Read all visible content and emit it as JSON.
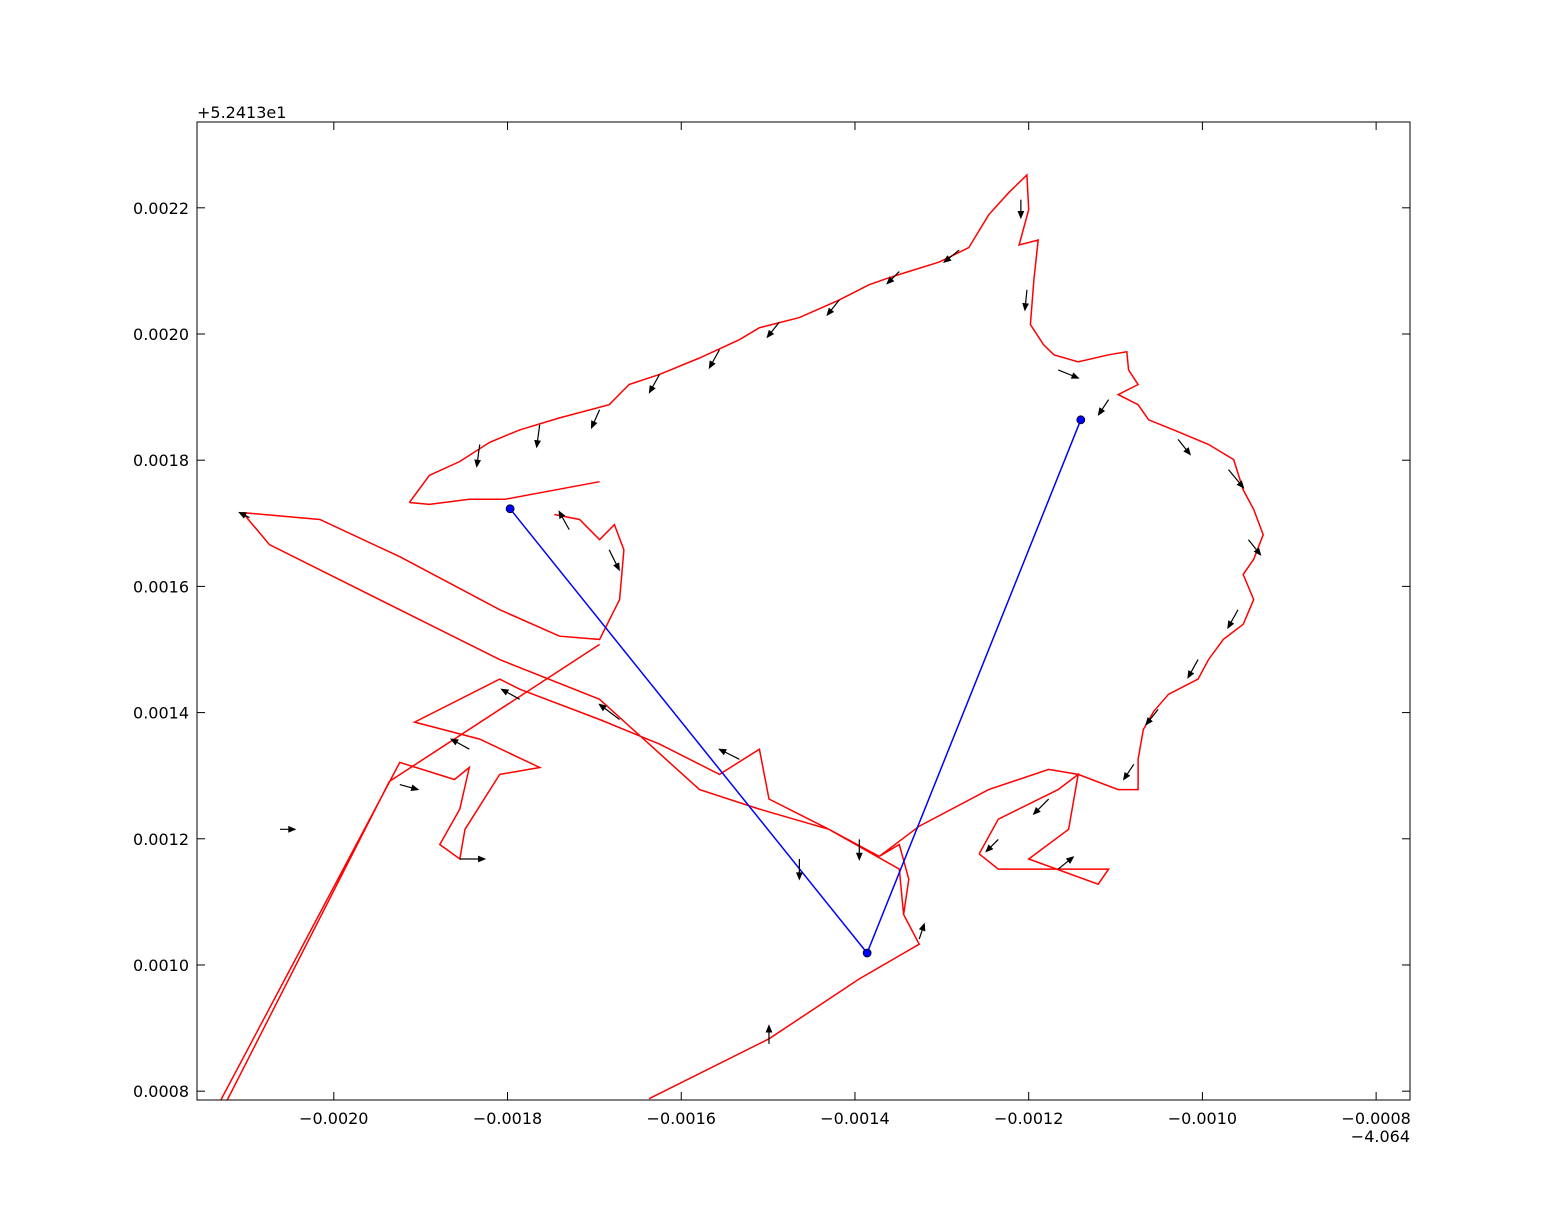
{
  "chart_data": {
    "type": "line",
    "x_offset_label": "−4.064",
    "y_offset_label": "+5.2413e1",
    "xlim": [
      -0.0021575,
      -0.000761
    ],
    "ylim": [
      0.000786,
      0.002336
    ],
    "xticks": [
      {
        "value": -0.002,
        "label": "−0.0020"
      },
      {
        "value": -0.0018,
        "label": "−0.0018"
      },
      {
        "value": -0.0016,
        "label": "−0.0016"
      },
      {
        "value": -0.0014,
        "label": "−0.0014"
      },
      {
        "value": -0.0012,
        "label": "−0.0012"
      },
      {
        "value": -0.001,
        "label": "−0.0010"
      },
      {
        "value": -0.0008,
        "label": "−0.0008"
      }
    ],
    "yticks": [
      0.0008,
      {
        "value": 0.001,
        "label": "0.0010"
      },
      0.0012,
      0.0014,
      0.0016,
      0.0018,
      {
        "value": 0.002,
        "label": "0.0020"
      },
      0.0022
    ],
    "series": [
      {
        "color": "#ff0000",
        "x": [
          -0.001913,
          -0.00189,
          -0.001855,
          -0.001821,
          -0.001786,
          -0.00174,
          -0.001683,
          -0.00166,
          -0.001625,
          -0.001579,
          -0.001533,
          -0.00151,
          -0.001464,
          -0.001418,
          -0.001384,
          -0.001361,
          -0.001338,
          -0.001303,
          -0.001269,
          -0.001246,
          -0.001223,
          -0.001202,
          -0.0012,
          -0.001211,
          -0.001189,
          -0.001194,
          -0.001198,
          -0.001183,
          -0.001171,
          -0.001143,
          -0.001108,
          -0.001087,
          -0.001085,
          -0.001074,
          -0.001097,
          -0.001074,
          -0.001062,
          -0.001033,
          -0.000993,
          -0.000964,
          -0.000953,
          -0.000941,
          -0.00093,
          -0.000941,
          -0.000953,
          -0.000941,
          -0.000953,
          -0.000976,
          -0.000993,
          -0.001005,
          -0.001039,
          -0.001056,
          -0.001068,
          -0.001074,
          -0.001074,
          -0.001097,
          -0.001143,
          -0.001177,
          -0.001246,
          -0.001326,
          -0.001372,
          -0.001349,
          -0.001338,
          -0.001344,
          -0.001326,
          -0.001395,
          -0.001499,
          -0.001637,
          null,
          -0.002157,
          -0.001924,
          -0.001861,
          -0.001844,
          -0.001855,
          -0.001878,
          -0.001855,
          -0.001849,
          -0.001809,
          -0.001763,
          -0.001832,
          -0.001907,
          -0.001809,
          -0.001786,
          -0.001694,
          -0.001625,
          -0.001556,
          -0.00151,
          -0.001499,
          -0.00143,
          -0.001372,
          null,
          -0.001694,
          -0.001803,
          -0.001844,
          -0.00189,
          -0.001913,
          null,
          -0.002105,
          -0.002016,
          -0.001924,
          -0.001809,
          -0.00174,
          -0.001694,
          -0.001671,
          -0.001666,
          -0.001677,
          -0.001694,
          -0.001717,
          -0.001746,
          null,
          -0.002105,
          -0.002074,
          -0.001809,
          -0.001694,
          -0.001579,
          -0.00151,
          -0.00143,
          -0.001349,
          -0.001344,
          null,
          -0.002157,
          -0.001936,
          -0.001694,
          null,
          -0.001257,
          -0.001235,
          -0.001166,
          -0.001143,
          -0.001154,
          -0.0012,
          -0.00112,
          -0.001108,
          -0.001235,
          -0.001257
        ],
        "values": [
          0.001733,
          0.001776,
          0.001798,
          0.001828,
          0.001848,
          0.001867,
          0.001888,
          0.00192,
          0.001936,
          0.001962,
          0.001991,
          0.00201,
          0.002026,
          0.002054,
          0.002078,
          0.002089,
          0.002099,
          0.002114,
          0.002137,
          0.002189,
          0.002224,
          0.002252,
          0.002197,
          0.002141,
          0.002149,
          0.002086,
          0.002015,
          0.001983,
          0.001967,
          0.001956,
          0.001967,
          0.001972,
          0.001943,
          0.00192,
          0.001904,
          0.001888,
          0.001864,
          0.001848,
          0.001825,
          0.001801,
          0.001753,
          0.001722,
          0.001682,
          0.001643,
          0.001619,
          0.001579,
          0.00154,
          0.001516,
          0.001484,
          0.001453,
          0.001429,
          0.001402,
          0.001373,
          0.001326,
          0.001278,
          0.001278,
          0.001302,
          0.00131,
          0.001278,
          0.00122,
          0.001172,
          0.001191,
          0.001136,
          0.00108,
          0.001033,
          0.000978,
          0.000883,
          0.000788,
          null,
          0.000716,
          0.001321,
          0.001294,
          0.001313,
          0.001247,
          0.001191,
          0.001168,
          0.001215,
          0.001302,
          0.001313,
          0.001358,
          0.001385,
          0.001453,
          0.001437,
          0.001389,
          0.00135,
          0.001302,
          0.001342,
          0.001263,
          0.001215,
          0.001172,
          null,
          0.001766,
          0.001738,
          0.001738,
          0.00173,
          0.001733,
          null,
          0.001717,
          0.001706,
          0.001647,
          0.001563,
          0.001521,
          0.001516,
          0.001579,
          0.001658,
          0.001698,
          0.001674,
          0.001706,
          0.001714,
          null,
          0.001717,
          0.001666,
          0.001484,
          0.001421,
          0.001278,
          0.001247,
          0.001215,
          0.001152,
          0.00108,
          null,
          0.000693,
          0.001291,
          0.001508,
          null,
          0.001176,
          0.001231,
          0.001278,
          0.001302,
          0.001215,
          0.001168,
          0.001128,
          0.001152,
          0.001152,
          0.001176
        ]
      },
      {
        "color": "#0000ff",
        "marker": "o",
        "x": [
          -0.001797,
          -0.001386,
          -0.00114
        ],
        "values": [
          0.001723,
          0.001019,
          0.001864
        ]
      }
    ],
    "quiver": {
      "color": "#000000",
      "x": [
        -0.001832,
        -0.001763,
        -0.001694,
        -0.001625,
        -0.001556,
        -0.001487,
        -0.001418,
        -0.001349,
        -0.00128,
        -0.001209,
        -0.001202,
        -0.001166,
        -0.001108,
        -0.001028,
        -0.00097,
        -0.000947,
        -0.000959,
        -0.001005,
        -0.001051,
        -0.001079,
        -0.001177,
        -0.001235,
        -0.001166,
        -0.001395,
        -0.001464,
        -0.001533,
        -0.001671,
        -0.001786,
        -0.001844,
        -0.001924,
        -0.002062,
        -0.001855,
        -0.002097,
        -0.001499,
        -0.001326,
        -0.001729,
        -0.001683
      ],
      "y": [
        0.001825,
        0.001856,
        0.00188,
        0.001936,
        0.001975,
        0.002019,
        0.002054,
        0.002099,
        0.002133,
        0.002213,
        0.00207,
        0.001943,
        0.001896,
        0.001833,
        0.001785,
        0.001674,
        0.001563,
        0.001484,
        0.001405,
        0.001318,
        0.001263,
        0.001199,
        0.001152,
        0.001199,
        0.001168,
        0.001326,
        0.001389,
        0.001421,
        0.001342,
        0.001286,
        0.001215,
        0.001168,
        0.001709,
        0.000875,
        0.001041,
        0.00169,
        0.001658
      ],
      "u": [
        -3.4e-06,
        -3.4e-06,
        -9.2e-06,
        -1.15e-05,
        -1.15e-05,
        -1.38e-05,
        -1.38e-05,
        -1.38e-05,
        -1.72e-05,
        0,
        -2.3e-06,
        2.3e-05,
        -1.15e-05,
        1.38e-05,
        1.72e-05,
        1.38e-05,
        -1.15e-05,
        -1.15e-05,
        -1.38e-05,
        -1.15e-05,
        -1.72e-05,
        -1.38e-05,
        1.72e-05,
        0,
        0,
        -2.3e-05,
        -2.3e-05,
        -2.07e-05,
        -2.07e-05,
        2.07e-05,
        1.72e-05,
        2.87e-05,
        -1.15e-05,
        0,
        5.7e-06,
        -1.15e-05,
        1.15e-05
      ],
      "v": [
        -3.48e-05,
        -3.48e-05,
        -2.85e-05,
        -2.85e-05,
        -2.85e-05,
        -2.38e-05,
        -2.38e-05,
        -1.9e-05,
        -1.9e-05,
        -2.85e-05,
        -3.17e-05,
        -1.27e-05,
        -2.38e-05,
        -2.38e-05,
        -2.85e-05,
        -2.38e-05,
        -2.85e-05,
        -2.85e-05,
        -2.38e-05,
        -2.38e-05,
        -2.38e-05,
        -1.9e-05,
        1.9e-05,
        -3.17e-05,
        -3.17e-05,
        1.58e-05,
        2.38e-05,
        1.58e-05,
        1.58e-05,
        -7.9e-06,
        0,
        0,
        7.9e-06,
        2.85e-05,
        2.38e-05,
        2.85e-05,
        -3.17e-05
      ]
    }
  }
}
